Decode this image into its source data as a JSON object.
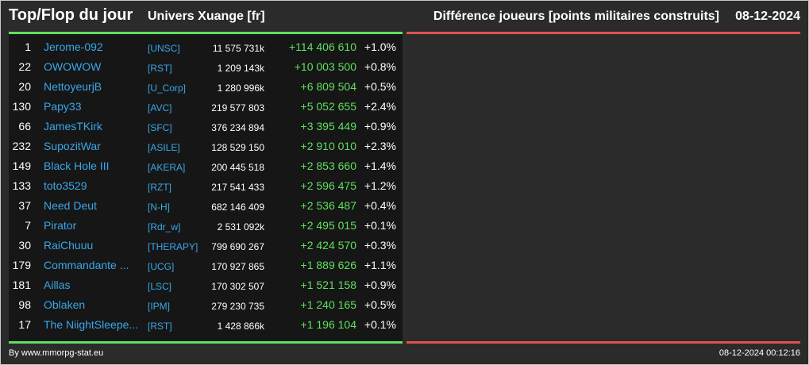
{
  "header": {
    "title": "Top/Flop du jour",
    "universe": "Univers Xuange [fr]",
    "metric": "Différence joueurs [points militaires construits]",
    "date": "08-12-2024"
  },
  "colors": {
    "background": "#2b2b2b",
    "panel": "#161616",
    "top_accent": "#5fe05f",
    "flop_accent": "#e0524a",
    "link": "#3aa7e8"
  },
  "top": {
    "rows": [
      {
        "rank": "1",
        "name": "Jerome-092",
        "alliance": "[UNSC]",
        "points": "11 575 731k",
        "delta": "+114 406 610",
        "pct": "+1.0%"
      },
      {
        "rank": "22",
        "name": "OWOWOW",
        "alliance": "[RST]",
        "points": "1 209 143k",
        "delta": "+10 003 500",
        "pct": "+0.8%"
      },
      {
        "rank": "20",
        "name": "NettoyeurjB",
        "alliance": "[U_Corp]",
        "points": "1 280 996k",
        "delta": "+6 809 504",
        "pct": "+0.5%"
      },
      {
        "rank": "130",
        "name": "Papy33",
        "alliance": "[AVC]",
        "points": "219 577 803",
        "delta": "+5 052 655",
        "pct": "+2.4%"
      },
      {
        "rank": "66",
        "name": "JamesTKirk",
        "alliance": "[SFC]",
        "points": "376 234 894",
        "delta": "+3 395 449",
        "pct": "+0.9%"
      },
      {
        "rank": "232",
        "name": "SupozitWar",
        "alliance": "[ASILE]",
        "points": "128 529 150",
        "delta": "+2 910 010",
        "pct": "+2.3%"
      },
      {
        "rank": "149",
        "name": "Black Hole III",
        "alliance": "[AKERA]",
        "points": "200 445 518",
        "delta": "+2 853 660",
        "pct": "+1.4%"
      },
      {
        "rank": "133",
        "name": "toto3529",
        "alliance": "[RZT]",
        "points": "217 541 433",
        "delta": "+2 596 475",
        "pct": "+1.2%"
      },
      {
        "rank": "37",
        "name": "Need Deut",
        "alliance": "[N-H]",
        "points": "682 146 409",
        "delta": "+2 536 487",
        "pct": "+0.4%"
      },
      {
        "rank": "7",
        "name": "Pirator",
        "alliance": "[Rdr_w]",
        "points": "2 531 092k",
        "delta": "+2 495 015",
        "pct": "+0.1%"
      },
      {
        "rank": "30",
        "name": "RaiChuuu",
        "alliance": "[THERAPY]",
        "points": "799 690 267",
        "delta": "+2 424 570",
        "pct": "+0.3%"
      },
      {
        "rank": "179",
        "name": "Commandante ...",
        "alliance": "[UCG]",
        "points": "170 927 865",
        "delta": "+1 889 626",
        "pct": "+1.1%"
      },
      {
        "rank": "181",
        "name": "Aillas",
        "alliance": "[LSC]",
        "points": "170 302 507",
        "delta": "+1 521 158",
        "pct": "+0.9%"
      },
      {
        "rank": "98",
        "name": "Oblaken",
        "alliance": "[IPM]",
        "points": "279 230 735",
        "delta": "+1 240 165",
        "pct": "+0.5%"
      },
      {
        "rank": "17",
        "name": "The NiightSleepe...",
        "alliance": "[RST]",
        "points": "1 428 866k",
        "delta": "+1 196 104",
        "pct": "+0.1%"
      }
    ]
  },
  "footer": {
    "source": "By www.mmorpg-stat.eu",
    "timestamp": "08-12-2024 00:12:16"
  }
}
